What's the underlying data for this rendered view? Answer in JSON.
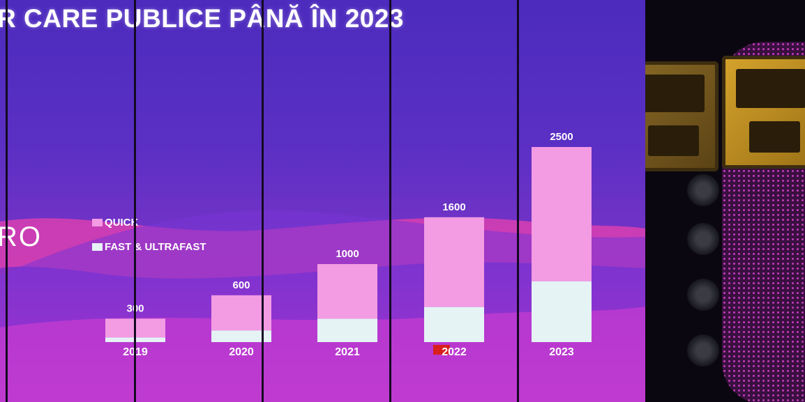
{
  "slide": {
    "title": "R CARE PUBLICE PÂNĂ ÎN 2023",
    "brand_fragment": "RO"
  },
  "colors": {
    "quick": "#f39be3",
    "fast_ultrafast": "#e6f3f5",
    "accent_2022_label": "#d9201f"
  },
  "chart_data": {
    "type": "bar",
    "stacked": true,
    "categories": [
      "2019",
      "2020",
      "2021",
      "2022",
      "2023"
    ],
    "series": [
      {
        "name": "FAST & ULTRAFAST",
        "values": [
          60,
          150,
          300,
          450,
          780
        ]
      },
      {
        "name": "QUICK",
        "values": [
          240,
          450,
          700,
          1150,
          1720
        ]
      }
    ],
    "totals": [
      300,
      600,
      1000,
      1600,
      2500
    ],
    "total_labels": [
      "300",
      "600",
      "1000",
      "1600",
      "2500"
    ],
    "legend": [
      "QUICK",
      "FAST & ULTRAFAST"
    ],
    "legend_position": "top-left",
    "ylim": [
      0,
      2500
    ],
    "grid": false,
    "axis_lines": false
  }
}
